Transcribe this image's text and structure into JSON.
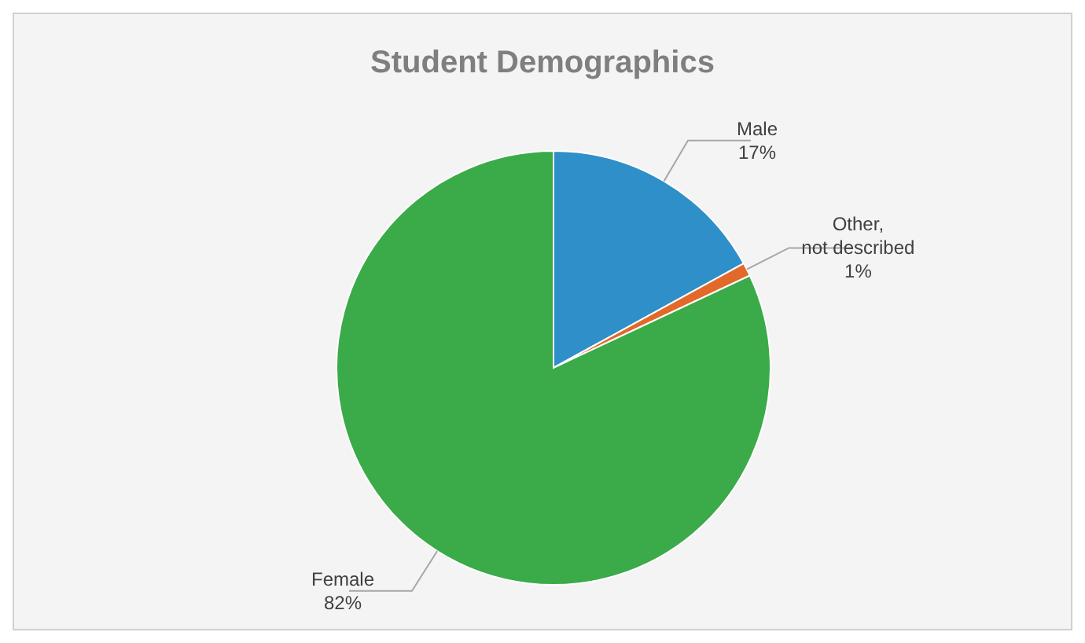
{
  "chart_data": {
    "type": "pie",
    "title": "Student Demographics",
    "categories": [
      "Male",
      "Other, not described",
      "Female"
    ],
    "values": [
      17,
      1,
      82
    ],
    "colors": [
      "#2f8fc8",
      "#e2692a",
      "#3aab48"
    ],
    "value_labels": [
      "17%",
      "1%",
      "82%"
    ]
  }
}
